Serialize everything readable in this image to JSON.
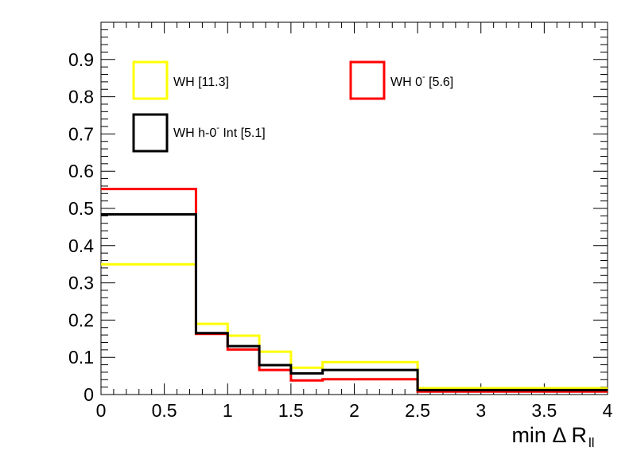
{
  "chart_data": {
    "type": "line",
    "step": true,
    "xlabel_main": "min Δ R",
    "xlabel_sub": "ll",
    "xlim": [
      0,
      4
    ],
    "ylim": [
      0,
      1
    ],
    "x_ticks": [
      0,
      0.5,
      1,
      1.5,
      2,
      2.5,
      3,
      3.5,
      4
    ],
    "x_tick_labels": [
      "0",
      "0.5",
      "1",
      "1.5",
      "2",
      "2.5",
      "3",
      "3.5",
      "4"
    ],
    "y_ticks": [
      0,
      0.1,
      0.2,
      0.3,
      0.4,
      0.5,
      0.6,
      0.7,
      0.8,
      0.9
    ],
    "y_tick_labels": [
      "0",
      "0.1",
      "0.2",
      "0.3",
      "0.4",
      "0.5",
      "0.6",
      "0.7",
      "0.8",
      "0.9"
    ],
    "bin_edges": [
      0,
      0.75,
      1,
      1.25,
      1.5,
      1.75,
      2.5,
      4
    ],
    "legend_placement": "top",
    "grid": false,
    "series": [
      {
        "legend_main": "WH [11.3]",
        "legend_sup": "",
        "legend_rest": "",
        "color": "#ffff00",
        "values": [
          0.35,
          0.19,
          0.158,
          0.115,
          0.072,
          0.087,
          0.017
        ]
      },
      {
        "legend_main": "WH 0",
        "legend_sup": "-",
        "legend_rest": " [5.6]",
        "color": "#ff0000",
        "values": [
          0.552,
          0.163,
          0.121,
          0.066,
          0.038,
          0.041,
          0.008
        ]
      },
      {
        "legend_main": "WH h-0",
        "legend_sup": "-",
        "legend_rest": " Int [5.1]",
        "color": "#000000",
        "values": [
          0.484,
          0.165,
          0.13,
          0.079,
          0.057,
          0.066,
          0.012
        ]
      }
    ]
  }
}
